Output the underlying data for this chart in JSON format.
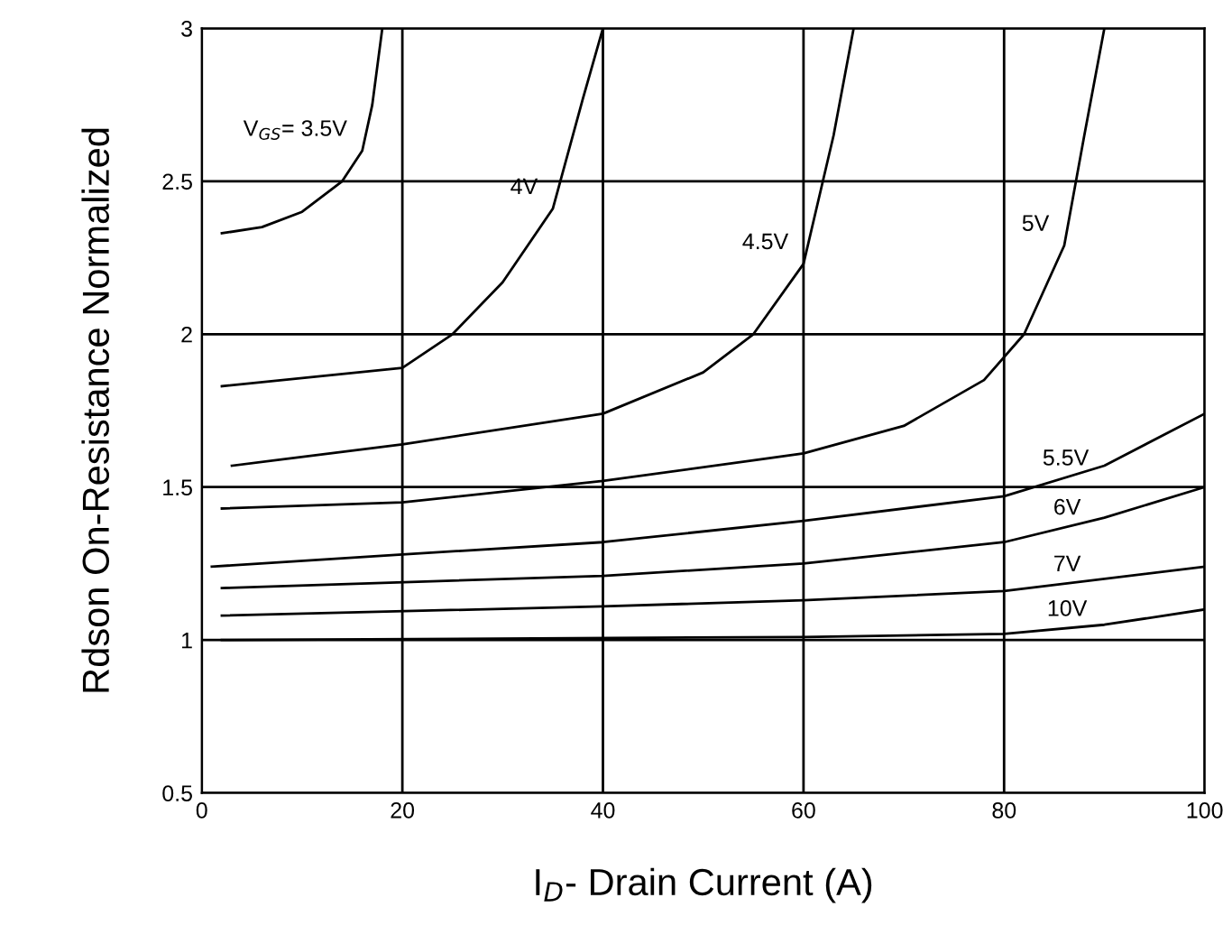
{
  "chart_data": {
    "type": "line",
    "xlabel": "I$_{D}$- Drain Current (A)",
    "ylabel": "Rdson On-Resistance Normalized",
    "xlim": [
      0,
      100
    ],
    "ylim": [
      0.5,
      3
    ],
    "xticks": [
      0,
      20,
      40,
      60,
      80,
      100
    ],
    "yticks": [
      0.5,
      1,
      1.5,
      2,
      2.5,
      3
    ],
    "grid": true,
    "line_style": "solid",
    "series": [
      {
        "name": "V$_{GS}$= 3.5V",
        "color": "#000000",
        "x": [
          2,
          6,
          10,
          14,
          16,
          17,
          18
        ],
        "values": [
          2.33,
          2.35,
          2.4,
          2.5,
          2.6,
          2.75,
          3.0
        ]
      },
      {
        "name": "4V",
        "color": "#000000",
        "x": [
          2,
          20,
          25,
          30,
          35,
          38,
          40
        ],
        "values": [
          1.83,
          1.89,
          2.0,
          2.17,
          2.41,
          2.77,
          3.0
        ]
      },
      {
        "name": "4.5V",
        "color": "#000000",
        "x": [
          3,
          20,
          40,
          50,
          55,
          60,
          63,
          65
        ],
        "values": [
          1.57,
          1.64,
          1.74,
          1.875,
          2.0,
          2.23,
          2.65,
          3.0
        ]
      },
      {
        "name": "5V",
        "color": "#000000",
        "x": [
          2,
          20,
          40,
          60,
          70,
          78,
          82,
          86,
          88,
          90
        ],
        "values": [
          1.43,
          1.45,
          1.52,
          1.61,
          1.7,
          1.85,
          2.0,
          2.29,
          2.65,
          3.0
        ]
      },
      {
        "name": "5.5V",
        "color": "#000000",
        "x": [
          1,
          20,
          40,
          60,
          80,
          90,
          100
        ],
        "values": [
          1.24,
          1.28,
          1.32,
          1.39,
          1.47,
          1.57,
          1.74
        ]
      },
      {
        "name": "6V",
        "color": "#000000",
        "x": [
          2,
          40,
          60,
          80,
          90,
          100
        ],
        "values": [
          1.17,
          1.21,
          1.25,
          1.32,
          1.4,
          1.5
        ]
      },
      {
        "name": "7V",
        "color": "#000000",
        "x": [
          2,
          40,
          60,
          80,
          100
        ],
        "values": [
          1.08,
          1.11,
          1.13,
          1.16,
          1.24
        ]
      },
      {
        "name": "10V",
        "color": "#000000",
        "x": [
          2,
          60,
          80,
          90,
          100
        ],
        "values": [
          1.0,
          1.01,
          1.02,
          1.05,
          1.1
        ]
      }
    ]
  }
}
